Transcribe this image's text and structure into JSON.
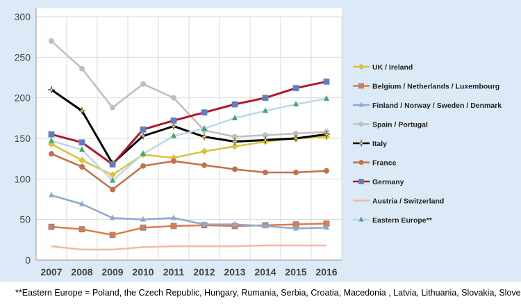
{
  "chart_data": {
    "type": "line",
    "title": "",
    "xlabel": "",
    "ylabel": "",
    "categories": [
      "2007",
      "2008",
      "2009",
      "2010",
      "2011",
      "2012",
      "2013",
      "2014",
      "2015",
      "2016"
    ],
    "ylim": [
      0,
      300
    ],
    "yticks": [
      0,
      50,
      100,
      150,
      200,
      250,
      300
    ],
    "grid": true,
    "legend": "right",
    "background": "#DCE9F6",
    "series": [
      {
        "name": "UK / Ireland",
        "color": "#D9C23A",
        "marker": "diamond",
        "values": [
          143,
          123,
          105,
          130,
          126,
          134,
          140,
          146,
          150,
          152
        ]
      },
      {
        "name": "Belgium / Netherlands / Luxembourg",
        "color": "#E07B45",
        "marker": "square",
        "values": [
          41,
          38,
          31,
          40,
          42,
          43,
          42,
          43,
          44,
          45
        ]
      },
      {
        "name": "Finland / Norway / Sweden / Denmark",
        "color": "#8FA8CF",
        "marker": "triangle",
        "values": [
          80,
          69,
          52,
          50,
          52,
          44,
          44,
          42,
          39,
          40
        ]
      },
      {
        "name": "Spain / Portugal",
        "color": "#BEBEBE",
        "marker": "circle",
        "values": [
          270,
          236,
          188,
          217,
          200,
          160,
          152,
          154,
          156,
          158
        ]
      },
      {
        "name": "Italy",
        "color": "#000000",
        "marker": "star",
        "values": [
          210,
          184,
          119,
          153,
          165,
          152,
          146,
          148,
          150,
          155
        ]
      },
      {
        "name": "France",
        "color": "#C0714A",
        "marker": "circle",
        "values": [
          131,
          115,
          87,
          116,
          122,
          117,
          112,
          108,
          108,
          110
        ]
      },
      {
        "name": "Germany",
        "color": "#B5152B",
        "marker": "square",
        "values": [
          155,
          145,
          118,
          161,
          172,
          182,
          192,
          200,
          212,
          220
        ]
      },
      {
        "name": "Austria / Switzerland",
        "color": "#F3B89C",
        "marker": "none",
        "values": [
          17,
          13,
          13,
          16,
          17,
          17,
          17,
          18,
          18,
          18
        ]
      },
      {
        "name": "Eastern Europe**",
        "color": "#BCD6EE",
        "marker": "triangle",
        "values": [
          147,
          136,
          98,
          131,
          153,
          162,
          175,
          184,
          192,
          199
        ]
      }
    ]
  },
  "footnote": "**Eastern Europe = Poland, the Czech Republic, Hungary, Rumania, Serbia, Croatia, Macedonia , Latvia, Lithuania, Slovakia, Slovenia"
}
